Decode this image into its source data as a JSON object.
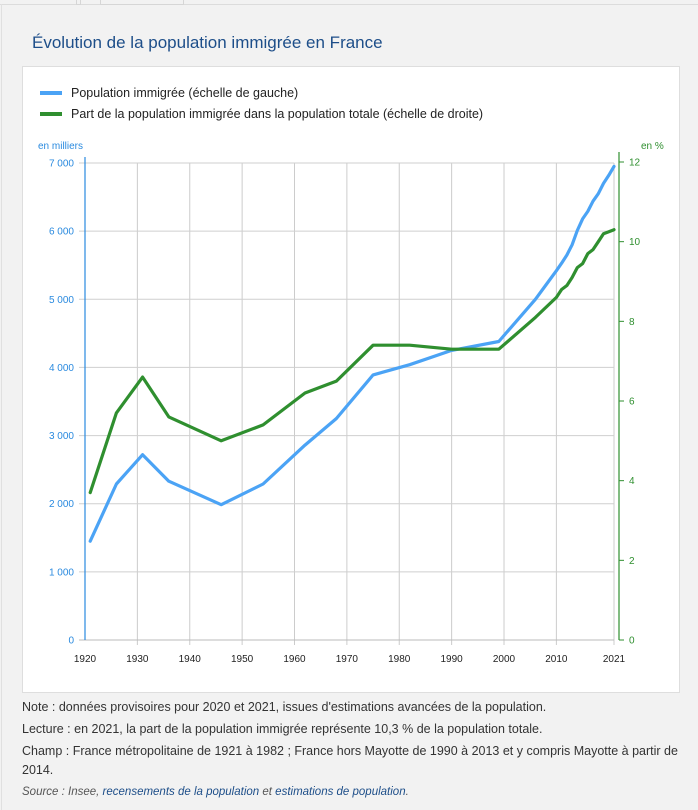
{
  "title": "Évolution de la population immigrée en France",
  "legend": [
    {
      "label": "Population immigrée (échelle de gauche)",
      "color": "#4ba3f5"
    },
    {
      "label": "Part de la population immigrée dans la population totale (échelle de droite)",
      "color": "#2f8f2f"
    }
  ],
  "notes": {
    "note": "Note : données provisoires pour 2020 et 2021, issues d'estimations avancées de la population.",
    "lecture": "Lecture : en 2021, la part de la population immigrée représente 10,3 % de la population totale.",
    "champ": "Champ : France métropolitaine de 1921 à 1982 ; France hors Mayotte de 1990 à 2013 et y compris Mayotte à partir de 2014.",
    "source_prefix": "Source : Insee, ",
    "source_link1": "recensements de la population",
    "source_mid": " et ",
    "source_link2": "estimations de population",
    "source_suffix": "."
  },
  "chart_data": {
    "type": "line",
    "title": "Évolution de la population immigrée en France",
    "xlabel": "",
    "ylabel_left": "en milliers",
    "ylabel_right": "en %",
    "xlim": [
      1920,
      2021
    ],
    "ylim_left": [
      0,
      7000
    ],
    "ylim_right": [
      0,
      12
    ],
    "x_ticks": [
      "1920",
      "1930",
      "1940",
      "1950",
      "1960",
      "1970",
      "1980",
      "1990",
      "2000",
      "2010",
      "2021"
    ],
    "x_tick_values": [
      1920,
      1930,
      1940,
      1950,
      1960,
      1970,
      1980,
      1990,
      2000,
      2010,
      2021
    ],
    "y_left_ticks": [
      "0",
      "1 000",
      "2 000",
      "3 000",
      "4 000",
      "5 000",
      "6 000",
      "7 000"
    ],
    "y_left_tick_values": [
      0,
      1000,
      2000,
      3000,
      4000,
      5000,
      6000,
      7000
    ],
    "y_right_ticks": [
      "0",
      "2",
      "4",
      "6",
      "8",
      "10",
      "12"
    ],
    "y_right_tick_values": [
      0,
      2,
      4,
      6,
      8,
      10,
      12
    ],
    "grid": true,
    "legend_position": "top-left",
    "series": [
      {
        "name": "Population immigrée (échelle de gauche)",
        "axis": "left",
        "color": "#4ba3f5",
        "x": [
          1921,
          1926,
          1931,
          1936,
          1946,
          1954,
          1962,
          1968,
          1975,
          1982,
          1990,
          1999,
          2006,
          2008,
          2010,
          2011,
          2012,
          2013,
          2014,
          2015,
          2016,
          2017,
          2018,
          2019,
          2020,
          2021
        ],
        "values": [
          1450,
          2290,
          2720,
          2330,
          1985,
          2290,
          2860,
          3250,
          3890,
          4040,
          4250,
          4380,
          5000,
          5210,
          5420,
          5530,
          5650,
          5800,
          6010,
          6180,
          6290,
          6440,
          6550,
          6700,
          6820,
          6950
        ]
      },
      {
        "name": "Part de la population immigrée dans la population totale (échelle de droite)",
        "axis": "right",
        "color": "#2f8f2f",
        "x": [
          1921,
          1926,
          1931,
          1936,
          1946,
          1954,
          1962,
          1968,
          1975,
          1982,
          1990,
          1999,
          2006,
          2008,
          2010,
          2011,
          2012,
          2013,
          2014,
          2015,
          2016,
          2017,
          2018,
          2019,
          2020,
          2021
        ],
        "values": [
          3.7,
          5.7,
          6.6,
          5.6,
          5.0,
          5.4,
          6.2,
          6.5,
          7.4,
          7.4,
          7.3,
          7.3,
          8.1,
          8.35,
          8.6,
          8.8,
          8.9,
          9.1,
          9.35,
          9.45,
          9.7,
          9.8,
          10.0,
          10.2,
          10.25,
          10.3
        ]
      }
    ]
  }
}
